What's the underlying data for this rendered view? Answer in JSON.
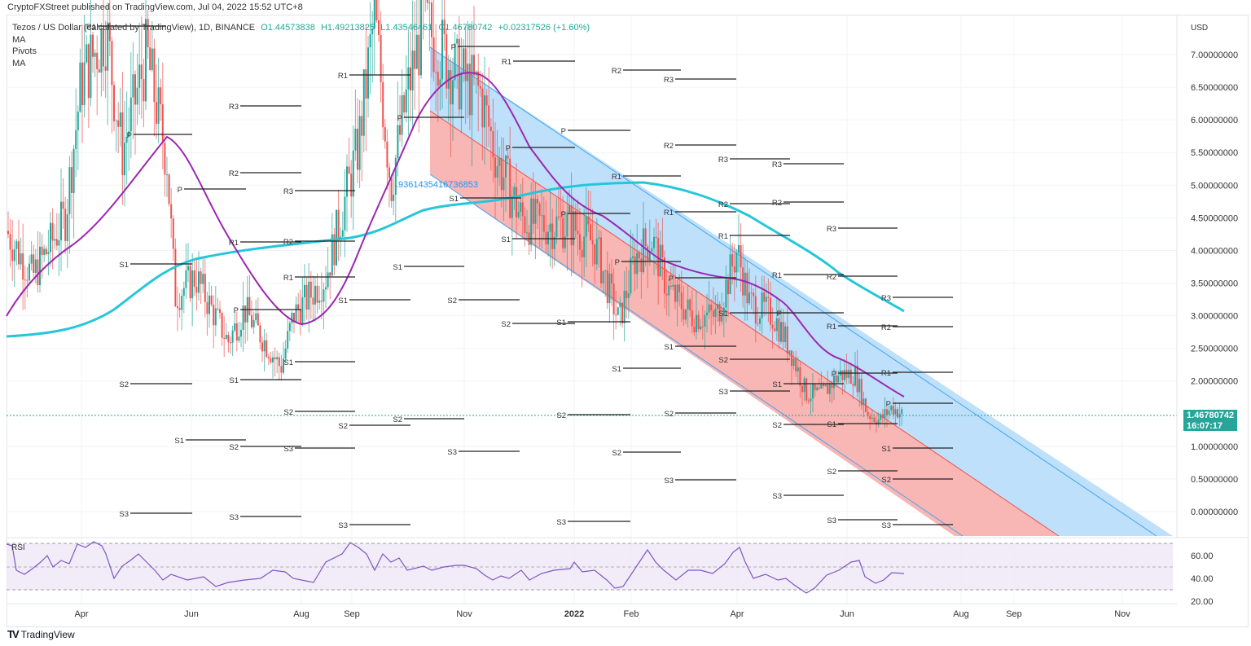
{
  "publisher": "CryptoFXStreet published on TradingView.com, Jul 04, 2022 15:52 UTC+8",
  "legend": {
    "symbol": "Tezos / US Dollar (calculated by TradingView), 1D, BINANCE",
    "open": "O1.44573838",
    "high": "H1.49213825",
    "low": "L1.43546461",
    "close": "C1.46780742",
    "change": "+0.02317526 (+1.60%)",
    "indicators": [
      "MA",
      "Pivots",
      "MA"
    ]
  },
  "price_axis": {
    "currency": "USD",
    "ticks": [
      "7.00000000",
      "6.50000000",
      "6.00000000",
      "5.50000000",
      "5.00000000",
      "4.50000000",
      "4.00000000",
      "3.50000000",
      "3.00000000",
      "2.50000000",
      "2.00000000",
      "1.00000000",
      "0.50000000",
      "0.00000000"
    ]
  },
  "current_price": {
    "value": "1.46780742",
    "countdown": "16:07:17"
  },
  "annotation_text": ".9361435416736853",
  "rsi": {
    "label": "RSI",
    "ticks": [
      "60.00",
      "40.00",
      "20.00"
    ]
  },
  "time_axis": [
    "Apr",
    "Jun",
    "Aug",
    "Sep",
    "Nov",
    "2022",
    "Feb",
    "Apr",
    "Jun",
    "Aug",
    "Sep",
    "Nov"
  ],
  "footer": {
    "logo": "TV",
    "brand": "TradingView"
  },
  "colors": {
    "up": "#26a69a",
    "down": "#ef5350",
    "ma_fast": "#9c27b0",
    "ma_slow": "#26c6da",
    "channel_upper": "#90caf9",
    "channel_lower": "#f7a6a4",
    "rsi_line": "#7e57c2",
    "rsi_band": "#ede7f6"
  },
  "chart_data": {
    "type": "candlestick",
    "title": "Tezos / US Dollar, 1D, BINANCE",
    "ylabel": "USD",
    "ylim": [
      -0.3,
      7.6
    ],
    "x_ticks": [
      "Apr",
      "Jun",
      "Aug",
      "Sep",
      "Nov",
      "2022",
      "Feb",
      "Apr",
      "Jun",
      "Aug",
      "Sep",
      "Nov"
    ],
    "last_price": 1.46780742,
    "ohlc_last": {
      "open": 1.44573838,
      "high": 1.49213825,
      "low": 1.43546461,
      "close": 1.46780742,
      "change": 0.02317526,
      "change_pct": 1.6
    },
    "approx_close_path": {
      "x": [
        "Mar 2021",
        "Apr 2021",
        "May 2021",
        "Jun 2021",
        "Jul 2021",
        "Aug 2021",
        "Sep 2021",
        "Oct 2021",
        "Nov 2021",
        "Dec 2021",
        "Jan 2022",
        "Feb 2022",
        "Mar 2022",
        "Apr 2022",
        "May 2022",
        "Jun 2022",
        "Jul 2022"
      ],
      "values": [
        4.3,
        6.5,
        5.8,
        3.4,
        2.9,
        3.4,
        6.5,
        6.8,
        5.6,
        4.6,
        3.3,
        4.0,
        3.2,
        3.5,
        2.5,
        1.8,
        1.47
      ]
    },
    "moving_averages": [
      {
        "name": "MA (fast)",
        "color": "purple",
        "approx_end": 1.75
      },
      {
        "name": "MA (slow)",
        "color": "cyan",
        "approx_end": 3.05
      }
    ],
    "descending_channel": {
      "upper_band_color": "light blue",
      "lower_band_color": "light red",
      "start": "Oct 2021",
      "end": "Nov 2022"
    },
    "pivot_labels": [
      "P",
      "R1",
      "R2",
      "R3",
      "S1",
      "S2",
      "S3"
    ],
    "rsi": {
      "upper": 70,
      "middle": 50,
      "lower": 30,
      "ticks": [
        60,
        40,
        20
      ],
      "approx_last": 45
    }
  }
}
